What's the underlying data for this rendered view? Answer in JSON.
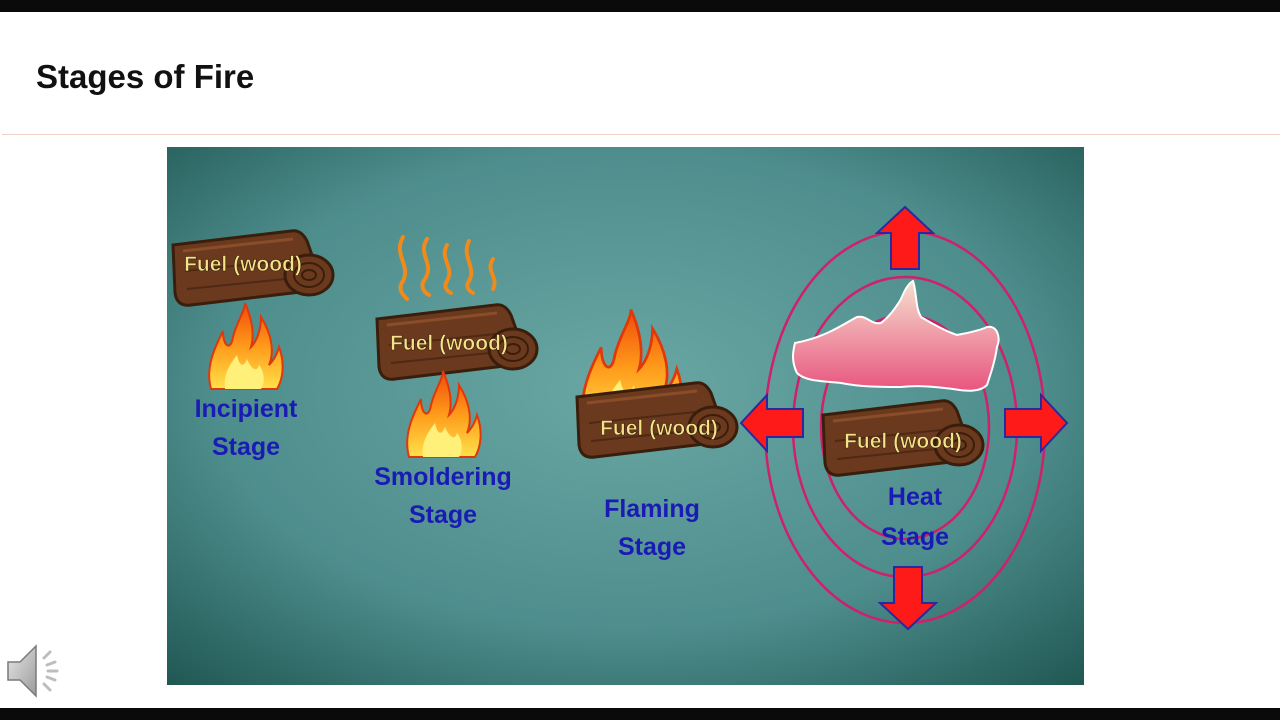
{
  "slide": {
    "title": "Stages of Fire"
  },
  "diagram": {
    "fuel_label": "Fuel (wood)",
    "stages": [
      {
        "line1": "Incipient",
        "line2": "Stage"
      },
      {
        "line1": "Smoldering",
        "line2": "Stage"
      },
      {
        "line1": "Flaming",
        "line2": "Stage"
      },
      {
        "line1": "Heat",
        "line2": "Stage"
      }
    ]
  },
  "colors": {
    "background_teal": "#5a9c9a",
    "stage_label": "#1a1ab4",
    "fuel_label": "#f3e48a",
    "wood": "#6b3a1e",
    "ring": "#d0206a",
    "arrow": "#ff1a1a",
    "heat_cloud": "#ec6a92"
  },
  "icons": [
    "speaker-icon"
  ]
}
